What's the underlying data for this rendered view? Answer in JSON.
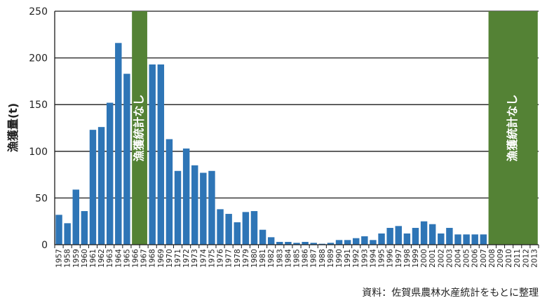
{
  "chart_data": {
    "type": "bar",
    "title": "",
    "ylabel": "漁獲量(t)",
    "xlabel": "",
    "ylim": [
      0,
      250
    ],
    "yticks": [
      0,
      50,
      100,
      150,
      200,
      250
    ],
    "grid": "horizontal",
    "bar_color": "#2e75b6",
    "band_color": "#548235",
    "categories": [
      "1957",
      "1958",
      "1959",
      "1960",
      "1961",
      "1962",
      "1963",
      "1964",
      "1965",
      "1966",
      "1967",
      "1968",
      "1969",
      "1970",
      "1971",
      "1972",
      "1973",
      "1974",
      "1975",
      "1976",
      "1977",
      "1978",
      "1979",
      "1980",
      "1981",
      "1982",
      "1983",
      "1984",
      "1985",
      "1986",
      "1987",
      "1988",
      "1989",
      "1990",
      "1991",
      "1992",
      "1993",
      "1994",
      "1995",
      "1996",
      "1997",
      "1998",
      "1999",
      "2000",
      "2001",
      "2002",
      "2003",
      "2004",
      "2005",
      "2006",
      "2007",
      "2008",
      "2009",
      "2010",
      "2011",
      "2012",
      "2013"
    ],
    "values": [
      32,
      23,
      59,
      36,
      123,
      126,
      152,
      216,
      183,
      null,
      null,
      193,
      193,
      113,
      79,
      103,
      85,
      77,
      79,
      38,
      33,
      24,
      35,
      36,
      16,
      8,
      3,
      3,
      2,
      3,
      2,
      1,
      2,
      5,
      5,
      7,
      9,
      5,
      12,
      18,
      20,
      12,
      18,
      25,
      22,
      12,
      18,
      11,
      11,
      11,
      11,
      null,
      null,
      null,
      null,
      null,
      null
    ],
    "no_data_bands": [
      {
        "label": "漁獲統計なし",
        "from": "1966",
        "to": "1967"
      },
      {
        "label": "漁獲統計なし",
        "from": "2008",
        "to": "2013"
      }
    ]
  },
  "source_note": "資料：佐賀県農林水産統計をもとに整理"
}
